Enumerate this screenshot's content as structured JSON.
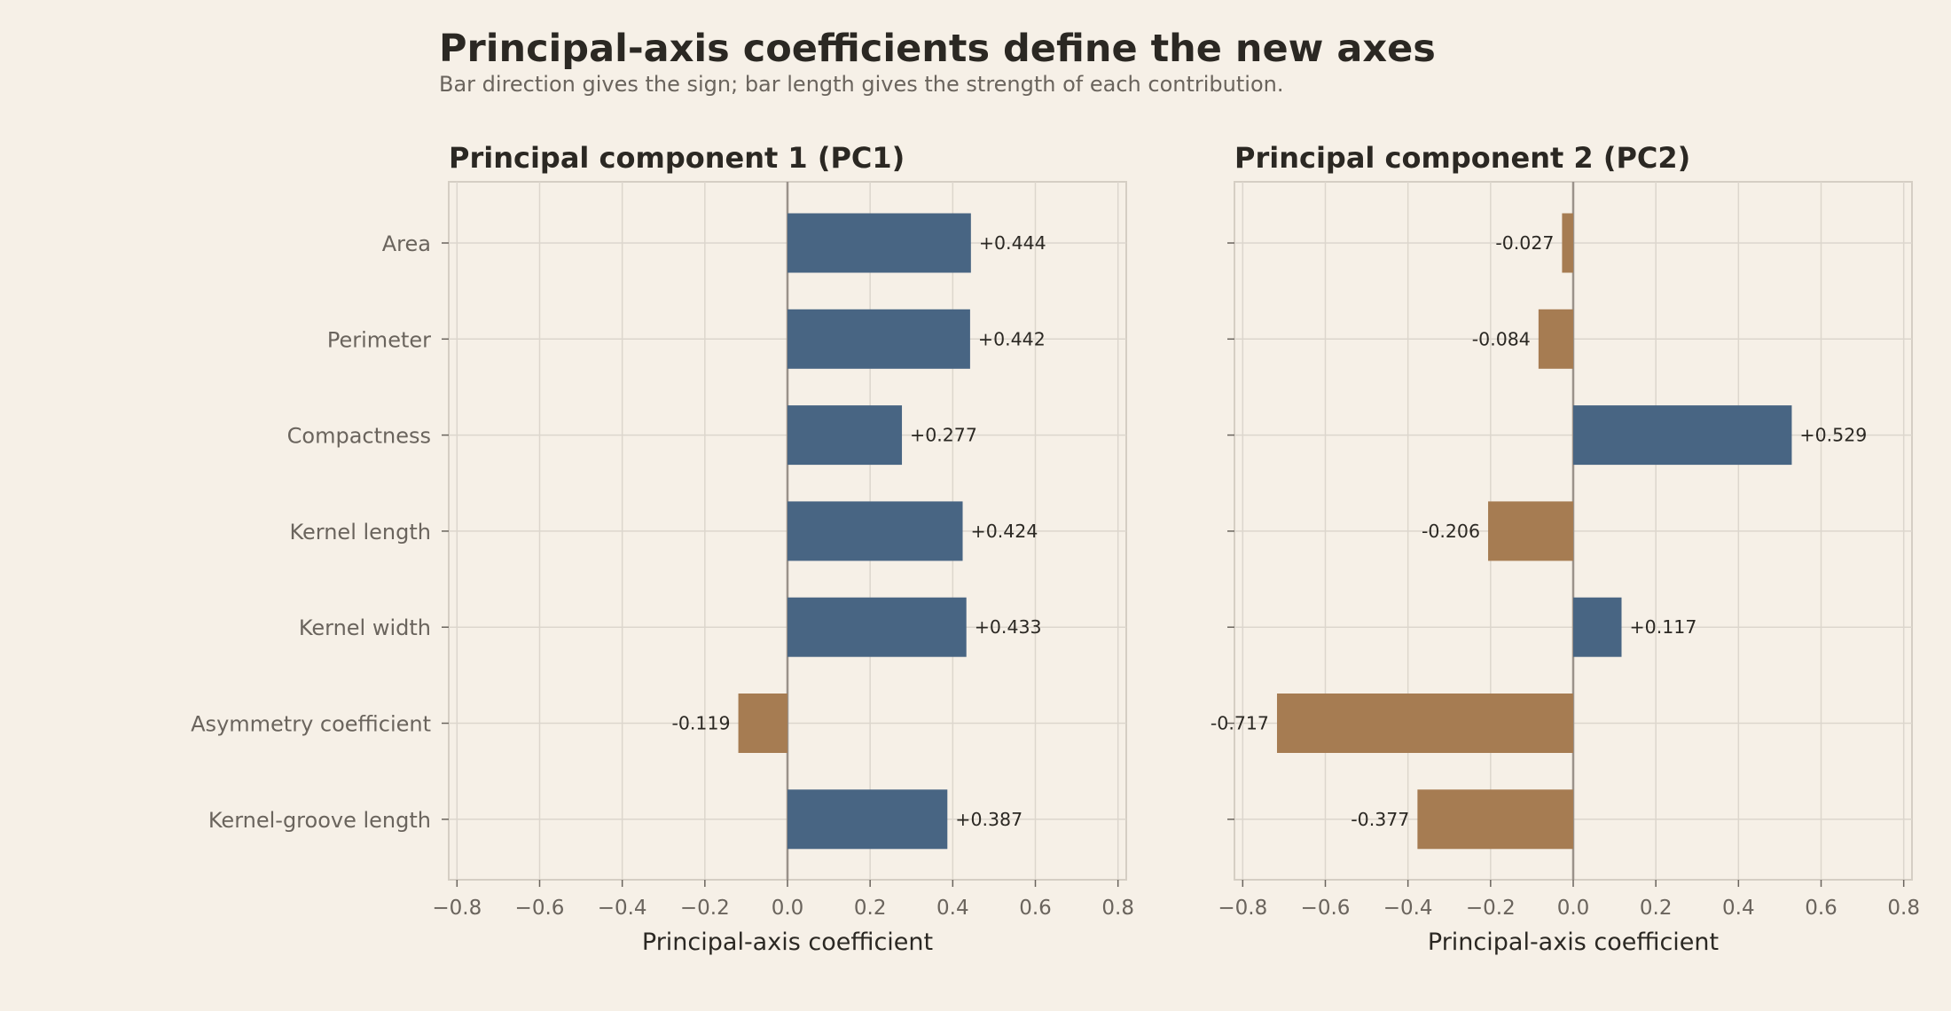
{
  "title": "Principal-axis coefficients define the new axes",
  "subtitle": "Bar direction gives the sign; bar length gives the strength of each contribution.",
  "colors": {
    "positive": "#486583",
    "negative": "#a67c52",
    "background": "#f6f0e7",
    "grid": "#dcd6cd",
    "zero_line": "#9a928a"
  },
  "chart_data": [
    {
      "type": "bar",
      "orientation": "horizontal",
      "title": "Principal component 1 (PC1)",
      "xlabel": "Principal-axis coefficient",
      "ylabel": "",
      "xlim": [
        -0.82,
        0.82
      ],
      "xticks": [
        -0.8,
        -0.6,
        -0.4,
        -0.2,
        0.0,
        0.2,
        0.4,
        0.6,
        0.8
      ],
      "xtick_labels": [
        "−0.8",
        "−0.6",
        "−0.4",
        "−0.2",
        "0.0",
        "0.2",
        "0.4",
        "0.6",
        "0.8"
      ],
      "grid": true,
      "categories": [
        "Area",
        "Perimeter",
        "Compactness",
        "Kernel length",
        "Kernel width",
        "Asymmetry coefficient",
        "Kernel-groove length"
      ],
      "values": [
        0.444,
        0.442,
        0.277,
        0.424,
        0.433,
        -0.119,
        0.387
      ],
      "value_labels": [
        "+0.444",
        "+0.442",
        "+0.277",
        "+0.424",
        "+0.433",
        "-0.119",
        "+0.387"
      ]
    },
    {
      "type": "bar",
      "orientation": "horizontal",
      "title": "Principal component 2 (PC2)",
      "xlabel": "Principal-axis coefficient",
      "ylabel": "",
      "xlim": [
        -0.82,
        0.82
      ],
      "xticks": [
        -0.8,
        -0.6,
        -0.4,
        -0.2,
        0.0,
        0.2,
        0.4,
        0.6,
        0.8
      ],
      "xtick_labels": [
        "−0.8",
        "−0.6",
        "−0.4",
        "−0.2",
        "0.0",
        "0.2",
        "0.4",
        "0.6",
        "0.8"
      ],
      "grid": true,
      "categories": [
        "Area",
        "Perimeter",
        "Compactness",
        "Kernel length",
        "Kernel width",
        "Asymmetry coefficient",
        "Kernel-groove length"
      ],
      "values": [
        -0.027,
        -0.084,
        0.529,
        -0.206,
        0.117,
        -0.717,
        -0.377
      ],
      "value_labels": [
        "-0.027",
        "-0.084",
        "+0.529",
        "-0.206",
        "+0.117",
        "-0.717",
        "-0.377"
      ]
    }
  ]
}
